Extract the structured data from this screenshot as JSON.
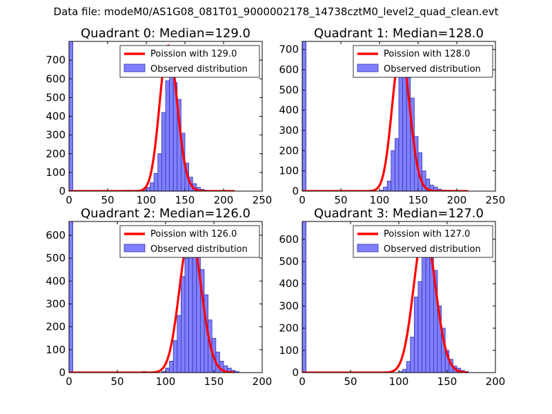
{
  "figure": {
    "suptitle": "Data file: modeM0/AS1G08_081T01_9000002178_14738cztM0_level2_quad_clean.evt"
  },
  "colors": {
    "curve": "#ff0000",
    "bars_fill": "#8080ff",
    "bars_edge": "#3333aa",
    "axis": "#000000",
    "background": "#ffffff"
  },
  "chart_data": [
    {
      "type": "bar",
      "title": "Quadrant 0: Median=129.0",
      "median": 129.0,
      "xlim": [
        0,
        250
      ],
      "ylim": [
        0,
        800
      ],
      "xticks": [
        0,
        50,
        100,
        150,
        200,
        250
      ],
      "yticks": [
        0,
        100,
        200,
        300,
        400,
        500,
        600,
        700
      ],
      "legend": {
        "placement": "top-right",
        "curve_label": "Poission with 129.0",
        "bars_label": "Observed distribution"
      },
      "bin_width": 5,
      "hist": [
        [
          0,
          800
        ],
        [
          75,
          5
        ],
        [
          95,
          5
        ],
        [
          100,
          20
        ],
        [
          105,
          45
        ],
        [
          110,
          95
        ],
        [
          115,
          200
        ],
        [
          120,
          420
        ],
        [
          125,
          590
        ],
        [
          130,
          740
        ],
        [
          135,
          580
        ],
        [
          140,
          490
        ],
        [
          145,
          310
        ],
        [
          150,
          150
        ],
        [
          155,
          75
        ],
        [
          160,
          40
        ],
        [
          165,
          20
        ],
        [
          170,
          10
        ],
        [
          175,
          5
        ]
      ]
    },
    {
      "type": "bar",
      "title": "Quadrant 1: Median=128.0",
      "median": 128.0,
      "xlim": [
        0,
        250
      ],
      "ylim": [
        0,
        740
      ],
      "xticks": [
        0,
        50,
        100,
        150,
        200,
        250
      ],
      "yticks": [
        0,
        100,
        200,
        300,
        400,
        500,
        600,
        700
      ],
      "legend": {
        "placement": "top-right",
        "curve_label": "Poission with 128.0",
        "bars_label": "Observed distribution"
      },
      "bin_width": 5,
      "hist": [
        [
          0,
          740
        ],
        [
          100,
          5
        ],
        [
          105,
          20
        ],
        [
          110,
          50
        ],
        [
          115,
          200
        ],
        [
          120,
          260
        ],
        [
          125,
          570
        ],
        [
          130,
          660
        ],
        [
          135,
          560
        ],
        [
          140,
          460
        ],
        [
          145,
          270
        ],
        [
          150,
          190
        ],
        [
          155,
          100
        ],
        [
          160,
          60
        ],
        [
          165,
          30
        ],
        [
          170,
          20
        ],
        [
          175,
          10
        ],
        [
          180,
          5
        ],
        [
          185,
          5
        ]
      ]
    },
    {
      "type": "bar",
      "title": "Quadrant 2: Median=126.0",
      "median": 126.0,
      "xlim": [
        0,
        200
      ],
      "ylim": [
        0,
        660
      ],
      "xticks": [
        0,
        50,
        100,
        150,
        200
      ],
      "yticks": [
        0,
        100,
        200,
        300,
        400,
        500,
        600
      ],
      "legend": {
        "placement": "top-right",
        "curve_label": "Poission with 126.0",
        "bars_label": "Observed distribution"
      },
      "bin_width": 4,
      "hist": [
        [
          0,
          660
        ],
        [
          76,
          5
        ],
        [
          96,
          5
        ],
        [
          100,
          20
        ],
        [
          104,
          50
        ],
        [
          108,
          140
        ],
        [
          112,
          250
        ],
        [
          116,
          420
        ],
        [
          120,
          500
        ],
        [
          124,
          540
        ],
        [
          128,
          580
        ],
        [
          132,
          540
        ],
        [
          136,
          450
        ],
        [
          140,
          340
        ],
        [
          144,
          230
        ],
        [
          148,
          150
        ],
        [
          152,
          90
        ],
        [
          156,
          50
        ],
        [
          160,
          30
        ],
        [
          164,
          20
        ],
        [
          168,
          10
        ],
        [
          172,
          5
        ]
      ]
    },
    {
      "type": "bar",
      "title": "Quadrant 3: Median=127.0",
      "median": 127.0,
      "xlim": [
        0,
        200
      ],
      "ylim": [
        0,
        680
      ],
      "xticks": [
        0,
        50,
        100,
        150,
        200
      ],
      "yticks": [
        0,
        100,
        200,
        300,
        400,
        500,
        600
      ],
      "legend": {
        "placement": "top-right",
        "curve_label": "Poission with 127.0",
        "bars_label": "Observed distribution"
      },
      "bin_width": 4,
      "hist": [
        [
          0,
          680
        ],
        [
          100,
          5
        ],
        [
          104,
          15
        ],
        [
          108,
          50
        ],
        [
          112,
          160
        ],
        [
          116,
          340
        ],
        [
          120,
          410
        ],
        [
          124,
          570
        ],
        [
          128,
          610
        ],
        [
          132,
          590
        ],
        [
          136,
          460
        ],
        [
          140,
          300
        ],
        [
          144,
          200
        ],
        [
          148,
          100
        ],
        [
          152,
          60
        ],
        [
          156,
          30
        ],
        [
          160,
          20
        ],
        [
          164,
          10
        ],
        [
          168,
          5
        ]
      ]
    }
  ]
}
